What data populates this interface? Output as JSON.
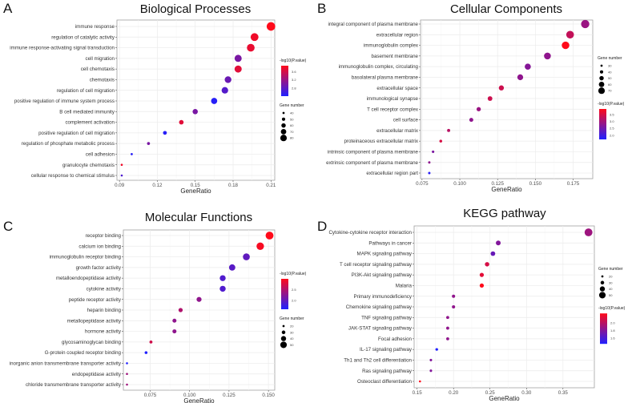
{
  "chart_data": [
    {
      "panel": "A",
      "type": "scatter",
      "title": "Biological Processes",
      "xlabel": "GeneRatio",
      "xlim": [
        0.088,
        0.213
      ],
      "xticks": [
        0.09,
        0.12,
        0.15,
        0.18,
        0.21
      ],
      "xtick_labels": [
        "0.09",
        "0.12",
        "0.15",
        "0.18",
        "0.21"
      ],
      "color_legend": {
        "title": "-log10(P.value)",
        "range": [
          2.4,
          3.9
        ],
        "ticks": [
          2.8,
          3.2,
          3.6
        ],
        "tick_labels": [
          "2.8",
          "3.2",
          "3.6"
        ]
      },
      "size_legend": {
        "title": "Gene number",
        "values": [
          40,
          50,
          60,
          70,
          80
        ],
        "labels": [
          "40",
          "50",
          "60",
          "70",
          "80"
        ]
      },
      "legend_order": [
        "color",
        "size"
      ],
      "terms": [
        "immune response",
        "regulation of catalytic activity",
        "immune response-activating signal transduction",
        "cell migration",
        "cell chemotaxis",
        "chemotaxis",
        "regulation of cell migration",
        "positive regulation of immune system process",
        "B cell mediated immunity",
        "complement activation",
        "positive regulation of cell migration",
        "regulation of phosphate metabolic process",
        "cell adhesion",
        "granulocyte chemotaxis",
        "cellular response to chemical stimulus"
      ],
      "gene_ratio": [
        0.21,
        0.197,
        0.194,
        0.184,
        0.184,
        0.176,
        0.1735,
        0.165,
        0.15,
        0.139,
        0.126,
        0.113,
        0.0997,
        0.0918,
        0.0918
      ],
      "gene_number": [
        85,
        80,
        79,
        75,
        75,
        72,
        71,
        68,
        62,
        57,
        52,
        46,
        41,
        38,
        38
      ],
      "neg_log10_p": [
        3.9,
        3.8,
        3.75,
        3.0,
        3.7,
        2.9,
        2.75,
        2.45,
        3.0,
        3.7,
        2.45,
        3.0,
        2.45,
        3.8,
        2.7
      ]
    },
    {
      "panel": "B",
      "type": "scatter",
      "title": "Cellular Components",
      "xlabel": "GeneRatio",
      "xlim": [
        0.074,
        0.188
      ],
      "xticks": [
        0.075,
        0.1,
        0.125,
        0.15,
        0.175
      ],
      "xtick_labels": [
        "0.075",
        "0.100",
        "0.125",
        "0.150",
        "0.175"
      ],
      "color_legend": {
        "title": "-log10(P.value)",
        "range": [
          1.7,
          3.9
        ],
        "ticks": [
          2.0,
          2.5,
          3.0,
          3.5
        ],
        "tick_labels": [
          "2.0",
          "2.5",
          "3.0",
          "3.5"
        ]
      },
      "size_legend": {
        "title": "Gene number",
        "values": [
          30,
          40,
          50,
          60,
          70
        ],
        "labels": [
          "30",
          "40",
          "50",
          "60",
          "70"
        ]
      },
      "legend_order": [
        "size",
        "color"
      ],
      "terms": [
        "integral component of plasma membrane",
        "extracellular region",
        "immunoglobulin complex",
        "basement membrane",
        "immunoglobulin complex, circulating",
        "basolateral plasma membrane",
        "extracellular space",
        "immunological synapse",
        "T cell receptor complex",
        "cell surface",
        "extracellular matrix",
        "proteinaceous extracellular matrix",
        "intrinsic component of plasma membrane",
        "extrinsic component of plasma membrane",
        "extracellular region part"
      ],
      "gene_ratio": [
        0.183,
        0.173,
        0.17,
        0.158,
        0.145,
        0.14,
        0.1275,
        0.12,
        0.1125,
        0.1076,
        0.0926,
        0.0874,
        0.0823,
        0.0798,
        0.0798
      ],
      "gene_number": [
        73,
        69,
        68,
        63,
        58,
        56,
        51,
        48,
        45,
        43,
        37,
        35,
        33,
        32,
        32
      ],
      "neg_log10_p": [
        2.9,
        3.3,
        3.9,
        2.8,
        2.7,
        2.8,
        3.4,
        3.4,
        2.9,
        2.8,
        3.2,
        3.5,
        2.6,
        2.8,
        1.8
      ]
    },
    {
      "panel": "C",
      "type": "scatter",
      "title": "Molecular Functions",
      "xlabel": "GeneRatio",
      "xlim": [
        0.058,
        0.154
      ],
      "xticks": [
        0.075,
        0.1,
        0.125,
        0.15
      ],
      "xtick_labels": [
        "0.075",
        "0.100",
        "0.125",
        "0.150"
      ],
      "color_legend": {
        "title": "-log10(P.value)",
        "range": [
          1.6,
          3.0
        ],
        "ticks": [
          2.0,
          2.5
        ],
        "tick_labels": [
          "2.0",
          "2.5"
        ]
      },
      "size_legend": {
        "title": "Gene number",
        "values": [
          20,
          30,
          40,
          50
        ],
        "labels": [
          "20",
          "30",
          "40",
          "50"
        ]
      },
      "legend_order": [
        "color",
        "size"
      ],
      "terms": [
        "receptor binding",
        "calcium ion binding",
        "immunoglobulin receptor binding",
        "growth factor activity",
        "metalloendopeptidase activity",
        "cytokine activity",
        "peptide receptor activity",
        "heparin binding",
        "metallopeptidase activity",
        "hormone activity",
        "glycosaminoglycan binding",
        "G-protein coupled receptor binding",
        "inorganic anion transmembrane transporter activity",
        "endopeptidase activity",
        "chloride transmembrane transporter activity"
      ],
      "gene_ratio": [
        0.1507,
        0.1448,
        0.136,
        0.127,
        0.121,
        0.121,
        0.106,
        0.0943,
        0.0904,
        0.0904,
        0.0755,
        0.0724,
        0.0603,
        0.0603,
        0.0603
      ],
      "gene_number": [
        50,
        48,
        45,
        42,
        40,
        40,
        35,
        31,
        30,
        30,
        25,
        24,
        20,
        20,
        20
      ],
      "neg_log10_p": [
        3.0,
        2.95,
        2.0,
        1.95,
        1.9,
        1.9,
        2.3,
        2.5,
        2.3,
        2.3,
        2.7,
        1.6,
        1.6,
        2.4,
        2.4
      ]
    },
    {
      "panel": "D",
      "type": "scatter",
      "title": "KEGG pathway",
      "xlabel": "GeneRatio",
      "xlim": [
        0.146,
        0.393
      ],
      "xticks": [
        0.15,
        0.2,
        0.25,
        0.3,
        0.35
      ],
      "xtick_labels": [
        "0.15",
        "0.20",
        "0.25",
        "0.30",
        "0.35"
      ],
      "color_legend": {
        "title": "-log10(P.value)",
        "range": [
          1.45,
          2.25
        ],
        "ticks": [
          1.6,
          1.8,
          2.0
        ],
        "tick_labels": [
          "1.6",
          "1.8",
          "2.0"
        ]
      },
      "size_legend": {
        "title": "Gene number",
        "values": [
          20,
          30,
          40,
          50
        ],
        "labels": [
          "20",
          "30",
          "40",
          "50"
        ]
      },
      "legend_order": [
        "size",
        "color"
      ],
      "terms": [
        "Cytokine-cytokine receptor interaction",
        "Pathways in cancer",
        "MAPK signaling pathway",
        "T cell receptor signaling pathway",
        "PI3K-Akt signaling pathway",
        "Malaria",
        "Primary immunodeficiency",
        "Chemokine signaling pathway",
        "TNF signaling pathway",
        "JAK-STAT signaling pathway",
        "Focal adhesion",
        "IL-17 signaling pathway",
        "Th1 and Th2 cell differentiation",
        "Ras signaling pathway",
        "Osteoclast differentiation"
      ],
      "gene_ratio": [
        0.385,
        0.2613,
        0.254,
        0.246,
        0.2387,
        0.2387,
        0.2,
        0.2,
        0.192,
        0.192,
        0.192,
        0.177,
        0.169,
        0.169,
        0.154
      ],
      "gene_number": [
        50,
        34,
        33,
        32,
        31,
        31,
        26,
        26,
        25,
        25,
        25,
        23,
        22,
        22,
        20
      ],
      "neg_log10_p": [
        1.9,
        1.8,
        1.7,
        2.1,
        2.15,
        2.25,
        1.85,
        1.85,
        1.85,
        1.85,
        1.85,
        1.45,
        1.8,
        1.8,
        2.25
      ]
    }
  ],
  "colors": {
    "low": "#2020ff",
    "high": "#ff0a1a",
    "grid": "#ebebeb",
    "border": "#a0a0a0"
  }
}
